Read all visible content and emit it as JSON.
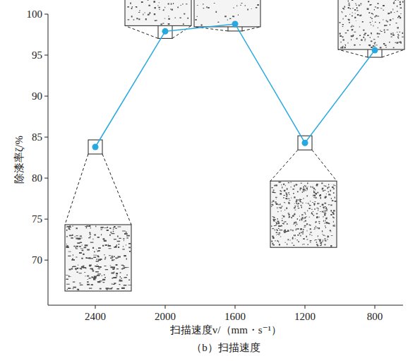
{
  "chart_data": {
    "type": "line",
    "subtitle": "（b）扫描速度",
    "xlabel": "扫描速度v/（mm・s⁻¹）",
    "ylabel": "除漆率ζ/%",
    "categories": [
      "2400",
      "2000",
      "1600",
      "1200",
      "800"
    ],
    "values": [
      83.8,
      97.9,
      98.8,
      84.3,
      95.6
    ],
    "color": "#29a8e0",
    "marker": "circle",
    "ylim": [
      64.5,
      100
    ],
    "yticks": [
      70,
      75,
      80,
      85,
      90,
      95,
      100
    ],
    "grid": false
  }
}
